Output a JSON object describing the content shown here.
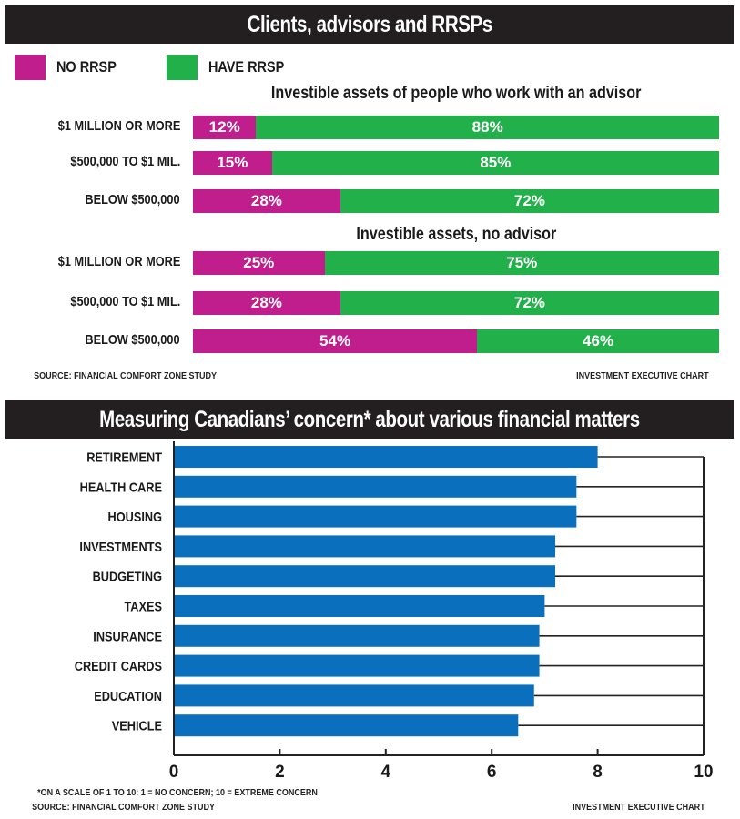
{
  "colors": {
    "banner_bg": "#231f20",
    "no_rrsp": "#bf1e8c",
    "have_rrsp": "#22b04b",
    "concern_bar": "#0a70bd"
  },
  "chart_data": [
    {
      "type": "bar",
      "orientation": "horizontal",
      "stacked": true,
      "title": "Clients, advisors and RRSPs",
      "legend": {
        "placement": "top-left",
        "entries": [
          {
            "name": "NO RRSP",
            "color": "#bf1e8c"
          },
          {
            "name": "HAVE RRSP",
            "color": "#22b04b"
          }
        ]
      },
      "groups": [
        {
          "subtitle": "Investible assets of people who work with an advisor",
          "categories": [
            "$1 MILLION OR MORE",
            "$500,000 TO $1 MIL.",
            "BELOW $500,000"
          ],
          "series": [
            {
              "name": "NO RRSP",
              "values": [
                12,
                15,
                28
              ],
              "labels": [
                "12%",
                "15%",
                "28%"
              ]
            },
            {
              "name": "HAVE RRSP",
              "values": [
                88,
                85,
                72
              ],
              "labels": [
                "88%",
                "85%",
                "72%"
              ]
            }
          ]
        },
        {
          "subtitle": "Investible assets, no advisor",
          "categories": [
            "$1 MILLION OR MORE",
            "$500,000 TO $1 MIL.",
            "BELOW $500,000"
          ],
          "series": [
            {
              "name": "NO RRSP",
              "values": [
                25,
                28,
                54
              ],
              "labels": [
                "25%",
                "28%",
                "54%"
              ]
            },
            {
              "name": "HAVE RRSP",
              "values": [
                75,
                72,
                46
              ],
              "labels": [
                "75%",
                "72%",
                "46%"
              ]
            }
          ]
        }
      ],
      "source": "SOURCE: FINANCIAL COMFORT ZONE STUDY",
      "credit": "INVESTMENT EXECUTIVE CHART",
      "unit": "%"
    },
    {
      "type": "bar",
      "orientation": "horizontal",
      "title": "Measuring Canadians’ concern* about various financial matters",
      "categories": [
        "RETIREMENT",
        "HEALTH CARE",
        "HOUSING",
        "INVESTMENTS",
        "BUDGETING",
        "TAXES",
        "INSURANCE",
        "CREDIT CARDS",
        "EDUCATION",
        "VEHICLE"
      ],
      "values": [
        8.0,
        7.6,
        7.6,
        7.2,
        7.2,
        7.0,
        6.9,
        6.9,
        6.8,
        6.5
      ],
      "xlabel": "",
      "ylabel": "",
      "xlim": [
        0,
        10
      ],
      "xticks": [
        "0",
        "2",
        "4",
        "6",
        "8",
        "10"
      ],
      "grid": false,
      "footnote": "*ON A SCALE OF 1 TO 10: 1 = NO CONCERN; 10 = EXTREME CONCERN",
      "source": "SOURCE: FINANCIAL COMFORT ZONE STUDY",
      "credit": "INVESTMENT EXECUTIVE CHART"
    }
  ]
}
